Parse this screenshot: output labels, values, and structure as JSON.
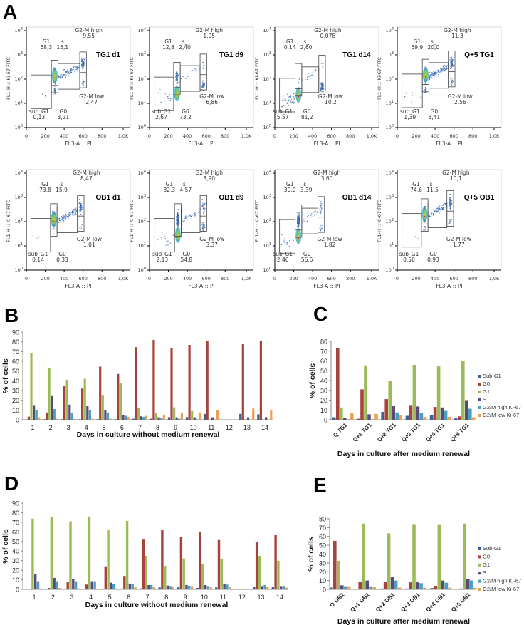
{
  "panel_labels": {
    "a": "A",
    "b": "B",
    "c": "C",
    "d": "D",
    "e": "E"
  },
  "flow_axes": {
    "x_label": "FL3-A :: PI",
    "y_label": "FL1-H :: Ki-67 FITC",
    "x_ticks": [
      "0",
      "200",
      "400",
      "600",
      "800",
      "1,0K"
    ],
    "y_tick_base": "10",
    "y_tick_exponents": [
      "0",
      "1",
      "2",
      "3",
      "4"
    ]
  },
  "flow_plots": [
    {
      "title": "TG1 d1",
      "s_label": "s",
      "g1_pi": 300,
      "g2_pi": 600,
      "split": 55,
      "gates": {
        "sub_G1": "0,13",
        "G0": "3,21",
        "G1": "68,3",
        "S": "15,1",
        "G2-M high": "9,55",
        "G2-M low": "2,47"
      }
    },
    {
      "title": "TG1 d9",
      "s_label": "s_",
      "g1_pi": 290,
      "g2_pi": 570,
      "split": 45,
      "gates": {
        "sub_G1": "2,67",
        "G0": "73,2",
        "G1": "12,8",
        "S": "2,40",
        "G2-M high": "1,05",
        "G2-M low": "6,86"
      }
    },
    {
      "title": "TG1 d14",
      "s_label": "s_",
      "g1_pi": 250,
      "g2_pi": 500,
      "split": 40,
      "gates": {
        "sub_G1": "5,57",
        "G0": "81,2",
        "G1": "0,14",
        "S": "2,60",
        "G2-M high": "0,078",
        "G2-M low": "10,2"
      }
    },
    {
      "title": "Q+5 TG1",
      "s_label": "s_",
      "g1_pi": 300,
      "g2_pi": 575,
      "split": 60,
      "gates": {
        "sub_G1": "1,39",
        "G0": "3,41",
        "G1": "59,9",
        "S": "20,0",
        "G2-M high": "11,3",
        "G2-M low": "2,56"
      }
    },
    {
      "title": "OB1 d1",
      "s_label": "s",
      "g1_pi": 290,
      "g2_pi": 575,
      "split": 50,
      "gates": {
        "sub_G1": "0,14",
        "G0": "0,33",
        "G1": "73,8",
        "S": "15,9",
        "G2-M high": "8,47",
        "G2-M low": "1,01"
      }
    },
    {
      "title": "OB1 d9",
      "s_label": "s_",
      "g1_pi": 300,
      "g2_pi": 570,
      "split": 50,
      "gates": {
        "sub_G1": "2,13",
        "G0": "54,8",
        "G1": "32,3",
        "S": "4,57",
        "G2-M high": "3,90",
        "G2-M low": "3,37"
      }
    },
    {
      "title": "OB1 d14",
      "s_label": "s_",
      "g1_pi": 250,
      "g2_pi": 490,
      "split": 45,
      "gates": {
        "sub_G1": "2,46",
        "G0": "56,5",
        "G1": "30,0",
        "S": "3,39",
        "G2-M high": "3,60",
        "G2-M low": "1,82"
      }
    },
    {
      "title": "Q+5 OB1",
      "s_label": "s_",
      "g1_pi": 290,
      "g2_pi": 560,
      "split": 80,
      "gates": {
        "sub_G1": "0,50",
        "G0": "0,93",
        "G1": "74,6",
        "S": "11,5",
        "G2-M high": "10,1",
        "G2-M low": "1,77"
      }
    }
  ],
  "colors": {
    "Sub-G1": "#3f5f8f",
    "G0": "#a8423c",
    "G1": "#9bbb59",
    "S": "#5a4a7c",
    "G2/M high Ki-67": "#4a9fc0",
    "G2/M low Ki-67": "#eea052"
  },
  "chart_data": [
    {
      "panel": "B",
      "type": "bar",
      "ylabel": "% of cells",
      "xlabel": "Days in culture without medium renewal",
      "ylim": [
        0,
        90
      ],
      "legend": "none",
      "series_names": [
        "Sub-G1",
        "G0",
        "G1",
        "S",
        "G2/M high Ki-67",
        "G2/M low Ki-67"
      ],
      "categories": [
        "1",
        "2",
        "3",
        "4",
        "5",
        "6",
        "7",
        "8",
        "9",
        "10",
        "11",
        "12",
        "13",
        "14"
      ],
      "values": [
        [
          0.13,
          3.21,
          68.3,
          15.1,
          9.55,
          2.47
        ],
        [
          0.5,
          7.5,
          53,
          25,
          11,
          1
        ],
        [
          0.5,
          34.5,
          41,
          15.5,
          7,
          1
        ],
        [
          0.5,
          32,
          42,
          14,
          10,
          1
        ],
        [
          0.5,
          54.5,
          25.5,
          10,
          7.5,
          1
        ],
        [
          0.5,
          47,
          38,
          5,
          4,
          3
        ],
        [
          1,
          74.5,
          12.5,
          3.5,
          3,
          4
        ],
        [
          1,
          82,
          6.5,
          2.5,
          1.5,
          5
        ],
        [
          2.67,
          73.2,
          12.8,
          2.4,
          1.05,
          6.86
        ],
        [
          2.7,
          76.8,
          9,
          2.5,
          0.5,
          7.5
        ],
        [
          6,
          80.7,
          0.2,
          2.5,
          0.1,
          10
        ],
        null,
        [
          6,
          77.5,
          0.5,
          2.5,
          0.1,
          11.5
        ],
        [
          5.57,
          81.2,
          0.14,
          2.6,
          0.078,
          10.2
        ]
      ]
    },
    {
      "panel": "C",
      "type": "bar",
      "ylabel": "% of cells",
      "xlabel": "Days in culture after medium renewal",
      "ylim": [
        0,
        80
      ],
      "legend": "right",
      "series_names": [
        "Sub-G1",
        "G0",
        "G1",
        "S",
        "G2/M high Ki-67",
        "G2/M low Ki-67"
      ],
      "categories": [
        "Q TG1",
        "Q+1 TG1",
        "Q+2 TG1",
        "Q+3 TG1",
        "Q+4 TG1",
        "Q+5 TG1"
      ],
      "values": [
        [
          2.5,
          73,
          12.5,
          2,
          0.5,
          6.5
        ],
        [
          1,
          31,
          55.5,
          5.5,
          0.5,
          6
        ],
        [
          8,
          21,
          40,
          14.5,
          7.5,
          4.5
        ],
        [
          4,
          15,
          56,
          13.5,
          6.5,
          3
        ],
        [
          4.5,
          13,
          54.5,
          12.5,
          9,
          3
        ],
        [
          1.39,
          3.41,
          59.9,
          20,
          11.3,
          2.56
        ]
      ]
    },
    {
      "panel": "D",
      "type": "bar",
      "ylabel": "% of cells",
      "xlabel": "Days in culture without medium renewal",
      "ylim": [
        0,
        90
      ],
      "legend": "none",
      "series_names": [
        "Sub-G1",
        "G0",
        "G1",
        "S",
        "G2/M high Ki-67",
        "G2/M low Ki-67"
      ],
      "categories": [
        "1",
        "2",
        "3",
        "4",
        "5",
        "6",
        "7",
        "8",
        "9",
        "10",
        "11",
        "12",
        "13",
        "14"
      ],
      "values": [
        [
          0.14,
          0.33,
          73.8,
          15.9,
          8.47,
          1.01
        ],
        [
          0.5,
          1.5,
          75.5,
          12,
          8.5,
          1.5
        ],
        [
          0.5,
          8,
          71,
          11,
          8.5,
          1
        ],
        [
          0.5,
          5,
          76,
          8.5,
          8.5,
          0.5
        ],
        [
          0.5,
          24,
          62,
          7,
          5.5,
          1
        ],
        [
          0.5,
          14,
          71.5,
          6,
          5.5,
          2.5
        ],
        [
          1,
          52,
          35,
          4.5,
          4.5,
          2.5
        ],
        [
          2,
          62,
          24.5,
          4,
          3.5,
          3
        ],
        [
          2.13,
          54.8,
          32.3,
          4.57,
          3.9,
          3.37
        ],
        [
          1.5,
          59.5,
          26.5,
          4.5,
          3.5,
          2.5
        ],
        [
          2,
          51.5,
          32,
          6,
          5,
          2.5
        ],
        null,
        [
          3,
          49,
          35,
          3.5,
          4.5,
          2.5
        ],
        [
          2.46,
          56.5,
          30,
          3.39,
          3.6,
          1.82
        ]
      ]
    },
    {
      "panel": "E",
      "type": "bar",
      "ylabel": "% of cells",
      "xlabel": "Days in culture after medium renewal",
      "ylim": [
        0,
        80
      ],
      "legend": "right",
      "series_names": [
        "Sub-G1",
        "G0",
        "G1",
        "S",
        "G2/M high Ki-67",
        "G2/M low Ki-67"
      ],
      "categories": [
        "Q OB1",
        "Q+1 OB1",
        "Q+2 OB1",
        "Q+3 OB1",
        "Q+4 OB1",
        "Q+5 OB1"
      ],
      "values": [
        [
          2,
          55,
          32.5,
          4.5,
          3.5,
          3.5
        ],
        [
          0.5,
          8.5,
          74.5,
          10,
          3.5,
          2.5
        ],
        [
          1,
          8.5,
          63.5,
          14,
          10,
          2
        ],
        [
          1,
          8,
          74,
          8,
          7,
          2
        ],
        [
          1.5,
          4,
          73.8,
          10,
          7.5,
          2
        ],
        [
          0.5,
          0.93,
          74.6,
          11.5,
          10.1,
          1.77
        ]
      ]
    }
  ]
}
